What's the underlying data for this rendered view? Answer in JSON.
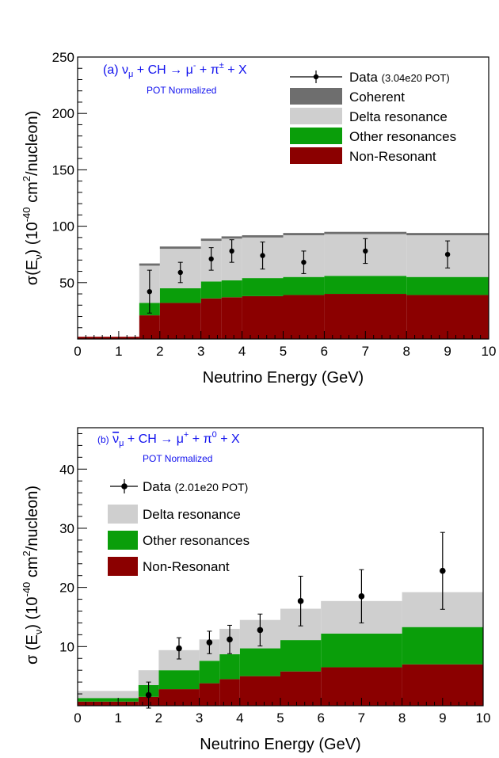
{
  "chart_data": [
    {
      "type": "area",
      "panel": "(a)",
      "reaction": "ν_μ + CH → μ⁻ + π± + X",
      "normalization": "POT Normalized",
      "xlabel": "Neutrino Energy (GeV)",
      "ylabel": "σ(E_ν) (10⁻⁴⁰ cm²/nucleon)",
      "xlim": [
        0,
        10
      ],
      "ylim": [
        0,
        250
      ],
      "xticks": [
        0,
        1,
        2,
        3,
        4,
        5,
        6,
        7,
        8,
        9,
        10
      ],
      "yticks": [
        50,
        100,
        150,
        200,
        250
      ],
      "bin_edges": [
        0,
        1.5,
        2.0,
        3.0,
        3.5,
        4.0,
        5.0,
        6.0,
        8.0,
        10.0
      ],
      "stack": [
        {
          "name": "Non-Resonant",
          "color": "#8b0000",
          "values": [
            2,
            21,
            32,
            36,
            37,
            38,
            39,
            40,
            39
          ]
        },
        {
          "name": "Other resonances",
          "color": "#0a9e0a",
          "values": [
            0,
            11,
            13,
            15,
            15,
            16,
            16,
            16,
            16
          ]
        },
        {
          "name": "Delta resonance",
          "color": "#cfcfcf",
          "values": [
            0,
            33,
            35,
            36,
            37,
            36,
            37,
            37,
            37
          ]
        },
        {
          "name": "Coherent",
          "color": "#6e6e6e",
          "values": [
            0,
            2,
            2,
            2,
            2,
            2,
            2,
            2,
            2
          ]
        }
      ],
      "data_series": {
        "name": "Data",
        "name_detail": "(3.04e20 POT)",
        "x": [
          1.75,
          2.5,
          3.25,
          3.75,
          4.5,
          5.5,
          7.0,
          9.0
        ],
        "y": [
          42,
          59,
          71,
          78,
          74,
          68,
          78,
          75
        ],
        "err": [
          19,
          9,
          10,
          10,
          12,
          10,
          11,
          12
        ],
        "xerr": [
          0.25,
          0.5,
          0.25,
          0.25,
          0.5,
          0.5,
          1.0,
          1.0
        ]
      },
      "legend": {
        "position": "top-right",
        "entries": [
          {
            "label": "Data",
            "detail": "(3.04e20 POT)",
            "kind": "marker"
          },
          {
            "label": "Coherent",
            "color": "#6e6e6e",
            "kind": "box"
          },
          {
            "label": "Delta resonance",
            "color": "#cfcfcf",
            "kind": "box"
          },
          {
            "label": "Other resonances",
            "color": "#0a9e0a",
            "kind": "box"
          },
          {
            "label": "Non-Resonant",
            "color": "#8b0000",
            "kind": "box"
          }
        ]
      }
    },
    {
      "type": "area",
      "panel": "(b)",
      "reaction": "ν̄_μ + CH → μ⁺ + π⁰ + X",
      "normalization": "POT Normalized",
      "xlabel": "Neutrino Energy (GeV)",
      "ylabel": "σ (E_ν) (10⁻⁴⁰ cm²/nucleon)",
      "xlim": [
        0,
        10
      ],
      "ylim": [
        0,
        47
      ],
      "xticks": [
        0,
        1,
        2,
        3,
        4,
        5,
        6,
        7,
        8,
        9,
        10
      ],
      "yticks": [
        10,
        20,
        30,
        40
      ],
      "bin_edges": [
        0,
        1.5,
        2.0,
        3.0,
        3.5,
        4.0,
        5.0,
        6.0,
        8.0,
        10.0
      ],
      "stack": [
        {
          "name": "Non-Resonant",
          "color": "#8b0000",
          "values": [
            0.7,
            1.5,
            2.8,
            3.8,
            4.5,
            5.0,
            5.8,
            6.5,
            7.0
          ]
        },
        {
          "name": "Other resonances",
          "color": "#0a9e0a",
          "values": [
            0.6,
            2.0,
            3.2,
            3.8,
            4.2,
            4.7,
            5.3,
            5.7,
            6.3
          ]
        },
        {
          "name": "Delta resonance",
          "color": "#cfcfcf",
          "values": [
            1.2,
            2.5,
            3.4,
            3.6,
            4.3,
            4.8,
            5.3,
            5.5,
            5.9
          ]
        }
      ],
      "data_series": {
        "name": "Data",
        "name_detail": "(2.01e20 POT)",
        "x": [
          1.75,
          2.5,
          3.25,
          3.75,
          4.5,
          5.5,
          7.0,
          9.0
        ],
        "y": [
          1.8,
          9.7,
          10.7,
          11.2,
          12.8,
          17.7,
          18.5,
          22.8
        ],
        "err": [
          2.2,
          1.8,
          1.9,
          2.4,
          2.7,
          4.2,
          4.5,
          6.5
        ],
        "xerr": [
          0.25,
          0.5,
          0.25,
          0.25,
          0.5,
          0.5,
          1.0,
          1.0
        ]
      },
      "legend": {
        "position": "top-left",
        "entries": [
          {
            "label": "Data",
            "detail": "(2.01e20 POT)",
            "kind": "marker"
          },
          {
            "label": "Delta resonance",
            "color": "#cfcfcf",
            "kind": "box"
          },
          {
            "label": "Other resonances",
            "color": "#0a9e0a",
            "kind": "box"
          },
          {
            "label": "Non-Resonant",
            "color": "#8b0000",
            "kind": "box"
          }
        ]
      }
    }
  ]
}
